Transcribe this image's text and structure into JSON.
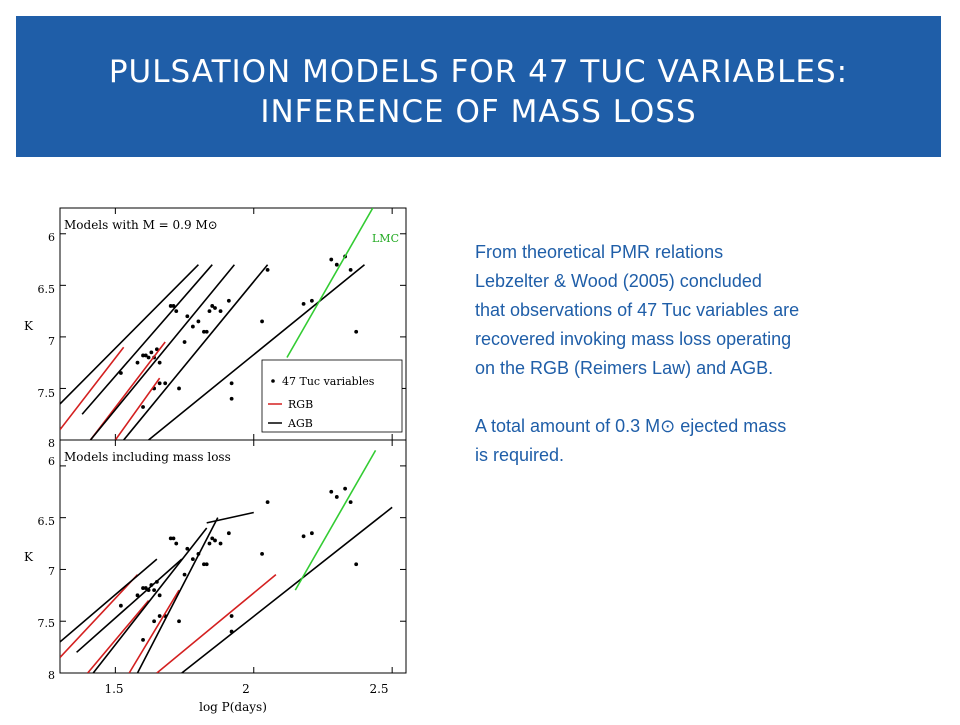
{
  "title": {
    "line1": "PULSATION MODELS FOR 47 TUC VARIABLES:",
    "line2": "INFERENCE OF MASS LOSS"
  },
  "body": {
    "paragraph1": [
      "From theoretical PMR relations",
      "Lebzelter & Wood (2005) concluded",
      "that observations of 47 Tuc variables are",
      "recovered invoking mass loss operating",
      "on the RGB (Reimers Law) and AGB."
    ],
    "paragraph2": [
      "A total amount of 0.3 M⊙ ejected mass",
      "is required."
    ]
  },
  "colors": {
    "title_bg": "#1f5ea8",
    "text": "#1f5ea8",
    "rgb": "#d42020",
    "agb": "#000000",
    "lmc": "#33cc33"
  },
  "figure": {
    "ylabel": "K",
    "xlabel": "log P(days)",
    "x_ticks": [
      "1.5",
      "2",
      "2.5"
    ],
    "y_ticks": [
      "6",
      "6.5",
      "7",
      "7.5",
      "8"
    ],
    "top_panel": {
      "label": "Models with M = 0.9 M⊙",
      "lmc_label": "LMC",
      "legend": [
        "47 Tuc variables",
        "RGB",
        "AGB"
      ]
    },
    "bottom_panel": {
      "label": "Models including mass loss"
    }
  },
  "chart_data": [
    {
      "type": "scatter",
      "title": "Models with M = 0.9 M⊙",
      "xlabel": "log P(days)",
      "ylabel": "K",
      "xlim": [
        1.3,
        2.55
      ],
      "ylim": [
        8.0,
        5.75
      ],
      "legend_placement": "bottom-right",
      "series": [
        {
          "name": "47 Tuc variables",
          "kind": "points",
          "x": [
            1.52,
            1.58,
            1.6,
            1.61,
            1.62,
            1.63,
            1.64,
            1.64,
            1.65,
            1.66,
            1.68,
            1.7,
            1.71,
            1.72,
            1.75,
            1.76,
            1.78,
            1.8,
            1.82,
            1.83,
            1.84,
            1.85,
            1.86,
            1.88,
            1.91,
            1.92,
            1.92,
            2.03,
            2.05,
            2.18,
            2.21,
            2.28,
            2.3,
            2.33,
            2.35,
            2.37,
            1.6,
            1.66,
            1.73
          ],
          "y": [
            7.35,
            7.25,
            7.18,
            7.18,
            7.2,
            7.15,
            7.2,
            7.5,
            7.12,
            7.25,
            7.45,
            6.7,
            6.7,
            6.75,
            7.05,
            6.8,
            6.9,
            6.85,
            6.95,
            6.95,
            6.75,
            6.7,
            6.72,
            6.75,
            6.65,
            7.45,
            7.6,
            6.85,
            6.35,
            6.68,
            6.65,
            6.25,
            6.3,
            6.22,
            6.35,
            6.95,
            7.68,
            7.45,
            7.5
          ]
        },
        {
          "name": "RGB",
          "kind": "lines",
          "lines": [
            {
              "x": [
                1.3,
                1.53
              ],
              "y": [
                7.9,
                7.1
              ]
            },
            {
              "x": [
                1.41,
                1.68
              ],
              "y": [
                8.0,
                7.05
              ]
            },
            {
              "x": [
                1.5,
                1.66
              ],
              "y": [
                8.0,
                7.4
              ]
            }
          ]
        },
        {
          "name": "AGB",
          "kind": "lines",
          "lines": [
            {
              "x": [
                1.3,
                1.8
              ],
              "y": [
                7.65,
                6.3
              ]
            },
            {
              "x": [
                1.38,
                1.85
              ],
              "y": [
                7.75,
                6.3
              ]
            },
            {
              "x": [
                1.41,
                1.93
              ],
              "y": [
                8.0,
                6.3
              ]
            },
            {
              "x": [
                1.53,
                2.05
              ],
              "y": [
                8.0,
                6.3
              ]
            },
            {
              "x": [
                1.62,
                2.4
              ],
              "y": [
                8.0,
                6.3
              ]
            }
          ]
        },
        {
          "name": "LMC",
          "kind": "lines",
          "lines": [
            {
              "x": [
                2.12,
                2.43
              ],
              "y": [
                7.2,
                5.75
              ]
            }
          ]
        }
      ]
    },
    {
      "type": "scatter",
      "title": "Models including mass loss",
      "xlabel": "log P(days)",
      "ylabel": "K",
      "xlim": [
        1.3,
        2.55
      ],
      "ylim": [
        8.0,
        5.75
      ],
      "series": [
        {
          "name": "47 Tuc variables",
          "kind": "points",
          "x": [
            1.52,
            1.58,
            1.6,
            1.61,
            1.62,
            1.63,
            1.64,
            1.64,
            1.65,
            1.66,
            1.68,
            1.7,
            1.71,
            1.72,
            1.75,
            1.76,
            1.78,
            1.8,
            1.82,
            1.83,
            1.84,
            1.85,
            1.86,
            1.88,
            1.91,
            1.92,
            1.92,
            2.03,
            2.05,
            2.18,
            2.21,
            2.28,
            2.3,
            2.33,
            2.35,
            2.37,
            1.6,
            1.66,
            1.73
          ],
          "y": [
            7.35,
            7.25,
            7.18,
            7.18,
            7.2,
            7.15,
            7.2,
            7.5,
            7.12,
            7.25,
            7.45,
            6.7,
            6.7,
            6.75,
            7.05,
            6.8,
            6.9,
            6.85,
            6.95,
            6.95,
            6.75,
            6.7,
            6.72,
            6.75,
            6.65,
            7.45,
            7.6,
            6.85,
            6.35,
            6.68,
            6.65,
            6.25,
            6.3,
            6.22,
            6.35,
            6.95,
            7.68,
            7.45,
            7.5
          ]
        },
        {
          "name": "RGB",
          "kind": "lines",
          "lines": [
            {
              "x": [
                1.3,
                1.58
              ],
              "y": [
                7.85,
                7.05
              ]
            },
            {
              "x": [
                1.4,
                1.62
              ],
              "y": [
                8.0,
                7.3
              ]
            },
            {
              "x": [
                1.55,
                1.73
              ],
              "y": [
                8.0,
                7.2
              ]
            },
            {
              "x": [
                1.65,
                2.08
              ],
              "y": [
                8.0,
                7.05
              ]
            }
          ]
        },
        {
          "name": "AGB",
          "kind": "lines",
          "lines": [
            {
              "x": [
                1.3,
                1.65
              ],
              "y": [
                7.7,
                6.9
              ]
            },
            {
              "x": [
                1.36,
                1.74
              ],
              "y": [
                7.8,
                6.9
              ]
            },
            {
              "x": [
                1.42,
                1.83
              ],
              "y": [
                8.0,
                6.6
              ]
            },
            {
              "x": [
                1.58,
                1.87
              ],
              "y": [
                8.0,
                6.5
              ]
            },
            {
              "x": [
                1.74,
                2.5
              ],
              "y": [
                8.0,
                6.4
              ]
            },
            {
              "x": [
                1.83,
                2.0
              ],
              "y": [
                6.55,
                6.45
              ]
            }
          ]
        },
        {
          "name": "LMC",
          "kind": "lines",
          "lines": [
            {
              "x": [
                2.15,
                2.44
              ],
              "y": [
                7.2,
                5.85
              ]
            }
          ]
        }
      ]
    }
  ]
}
